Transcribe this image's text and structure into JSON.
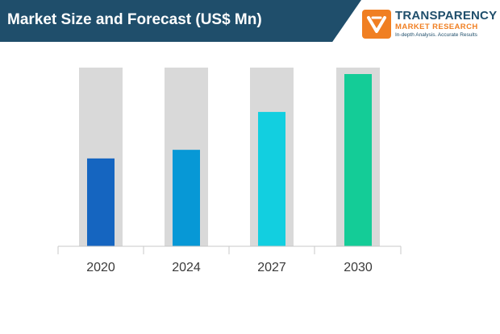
{
  "header": {
    "title": "Market Size and Forecast (US$ Mn)"
  },
  "logo": {
    "line1": "TRANSPARENCY",
    "line2": "MARKET RESEARCH",
    "line3": "In-depth Analysis. Accurate Results",
    "icon": "tmr-logo-icon"
  },
  "colors": {
    "header_bg": "#1f4e6b",
    "bar_background": "#d9d9d9",
    "logo_orange": "#f07f22"
  },
  "chart_data": {
    "type": "bar",
    "title": "Market Size and Forecast (US$ Mn)",
    "categories": [
      "2020",
      "2024",
      "2027",
      "2030"
    ],
    "values": [
      51,
      56,
      78,
      100
    ],
    "bar_colors": [
      "#1565c0",
      "#0798d6",
      "#12cfe0",
      "#14cc97"
    ],
    "ylim": [
      0,
      100
    ],
    "grid": false,
    "legend": "none"
  }
}
